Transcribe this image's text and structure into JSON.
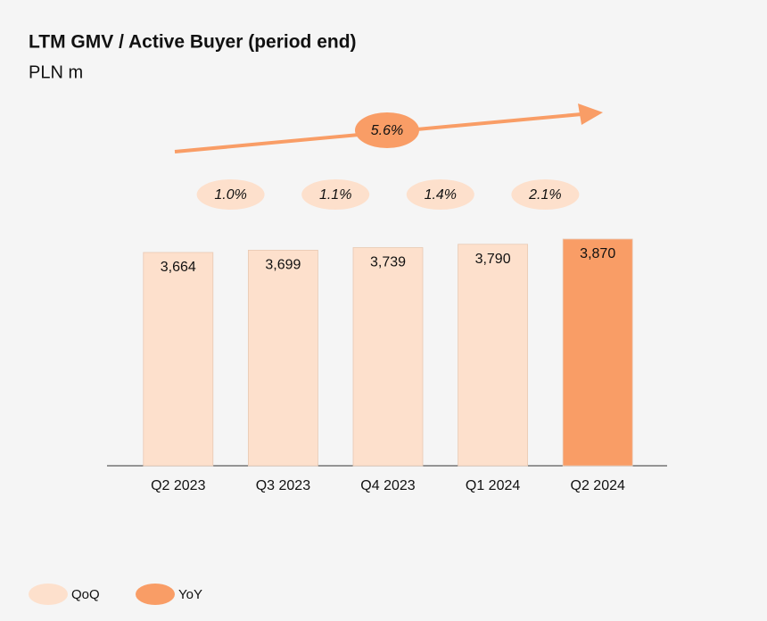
{
  "chart_data": {
    "type": "bar",
    "title": "LTM GMV / Active Buyer (period end)",
    "subtitle": "PLN m",
    "categories": [
      "Q2 2023",
      "Q3 2023",
      "Q4 2023",
      "Q1 2024",
      "Q2 2024"
    ],
    "values": [
      3664,
      3699,
      3739,
      3790,
      3870
    ],
    "value_labels": [
      "3,664",
      "3,699",
      "3,739",
      "3,790",
      "3,870"
    ],
    "colors": [
      "#fde0cc",
      "#fde0cc",
      "#fde0cc",
      "#fde0cc",
      "#f99d66"
    ],
    "ylim": [
      380,
      4000
    ],
    "qoq": {
      "name": "QoQ",
      "color": "#fde0cc",
      "values": [
        1.0,
        1.1,
        1.4,
        2.1
      ],
      "value_labels": [
        "1.0%",
        "1.1%",
        "1.4%",
        "2.1%"
      ]
    },
    "yoy": {
      "name": "YoY",
      "color": "#f99d66",
      "values": [
        5.6
      ],
      "value_labels": [
        "5.6%"
      ]
    }
  }
}
